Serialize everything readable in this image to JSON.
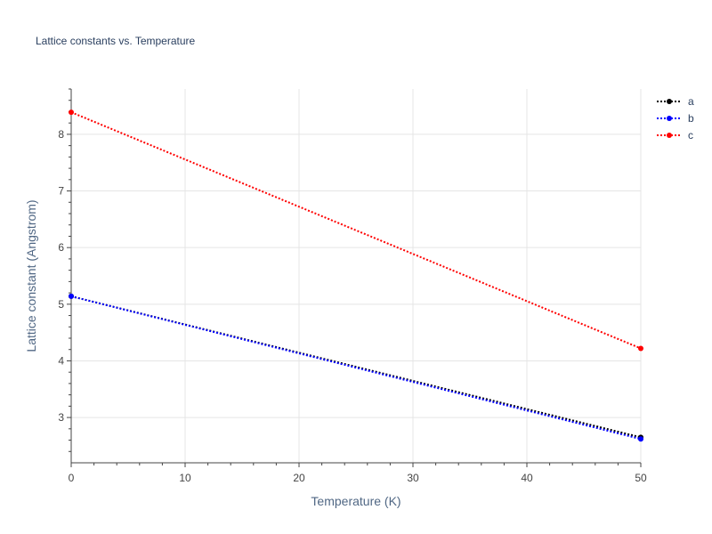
{
  "chart_data": {
    "type": "line",
    "title": "Lattice constants vs. Temperature",
    "xlabel": "Temperature (K)",
    "ylabel": "Lattice constant (Angstrom)",
    "xlim": [
      0,
      50
    ],
    "ylim": [
      2.2,
      8.8
    ],
    "x_ticks": [
      0,
      10,
      20,
      30,
      40,
      50
    ],
    "y_ticks": [
      3,
      4,
      5,
      6,
      7,
      8
    ],
    "grid": true,
    "legend_position": "top-right",
    "series": [
      {
        "name": "a",
        "color": "#000000",
        "line_style": "dotted",
        "marker": "circle",
        "x": [
          0,
          50
        ],
        "y": [
          5.14,
          2.65
        ]
      },
      {
        "name": "b",
        "color": "#0000ff",
        "line_style": "dotted",
        "marker": "circle",
        "x": [
          0,
          50
        ],
        "y": [
          5.14,
          2.62
        ]
      },
      {
        "name": "c",
        "color": "#ff0000",
        "line_style": "dotted",
        "marker": "circle",
        "x": [
          0,
          50
        ],
        "y": [
          8.39,
          4.22
        ]
      }
    ]
  }
}
